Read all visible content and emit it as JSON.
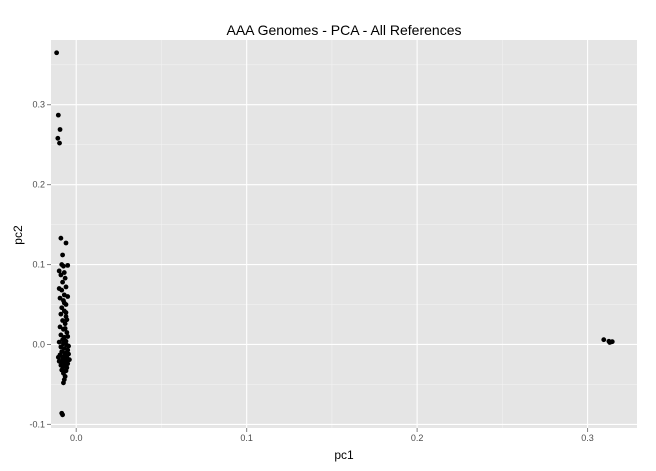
{
  "chart_data": {
    "type": "scatter",
    "title": "AAA Genomes - PCA - All References",
    "xlabel": "pc1",
    "ylabel": "pc2",
    "xlim": [
      -0.0148,
      0.329
    ],
    "ylim": [
      -0.1045,
      0.381
    ],
    "grid": true,
    "legend": "none",
    "colors": {
      "panel": "#e5e5e5",
      "grid_major": "#ffffff",
      "grid_minor": "#f2f2f2",
      "point": "#000000",
      "tick_text": "#4d4d4d"
    },
    "x_ticks": [
      {
        "value": 0.0,
        "label": "0.0"
      },
      {
        "value": 0.1,
        "label": "0.1"
      },
      {
        "value": 0.2,
        "label": "0.2"
      },
      {
        "value": 0.3,
        "label": "0.3"
      }
    ],
    "y_ticks": [
      {
        "value": -0.1,
        "label": "-0.1"
      },
      {
        "value": 0.0,
        "label": "0.0"
      },
      {
        "value": 0.1,
        "label": "0.1"
      },
      {
        "value": 0.2,
        "label": "0.2"
      },
      {
        "value": 0.3,
        "label": "0.3"
      }
    ],
    "points": [
      [
        -0.0115,
        0.365
      ],
      [
        -0.0105,
        0.287
      ],
      [
        -0.0095,
        0.269
      ],
      [
        -0.0108,
        0.258
      ],
      [
        -0.0098,
        0.252
      ],
      [
        -0.009,
        0.133
      ],
      [
        -0.006,
        0.127
      ],
      [
        -0.008,
        0.112
      ],
      [
        -0.0085,
        0.1
      ],
      [
        -0.0075,
        0.098
      ],
      [
        -0.005,
        0.099
      ],
      [
        -0.01,
        0.092
      ],
      [
        -0.007,
        0.09
      ],
      [
        -0.009,
        0.087
      ],
      [
        -0.0065,
        0.083
      ],
      [
        -0.008,
        0.078
      ],
      [
        -0.006,
        0.072
      ],
      [
        -0.0085,
        0.068
      ],
      [
        -0.007,
        0.062
      ],
      [
        -0.005,
        0.06
      ],
      [
        -0.0095,
        0.058
      ],
      [
        -0.0075,
        0.055
      ],
      [
        -0.006,
        0.05
      ],
      [
        -0.0085,
        0.046
      ],
      [
        -0.007,
        0.042
      ],
      [
        -0.009,
        0.038
      ],
      [
        -0.006,
        0.035
      ],
      [
        -0.008,
        0.03
      ],
      [
        -0.0065,
        0.026
      ],
      [
        -0.0095,
        0.022
      ],
      [
        -0.0075,
        0.019
      ],
      [
        -0.0055,
        0.015
      ],
      [
        -0.009,
        0.012
      ],
      [
        -0.007,
        0.009
      ],
      [
        -0.008,
        0.006
      ],
      [
        -0.006,
        0.004
      ],
      [
        -0.01,
        0.003
      ],
      [
        -0.0075,
        0.001
      ],
      [
        -0.0055,
        -0.001
      ],
      [
        -0.009,
        -0.003
      ],
      [
        -0.007,
        -0.005
      ],
      [
        -0.005,
        -0.007
      ],
      [
        -0.0085,
        -0.009
      ],
      [
        -0.0065,
        -0.011
      ],
      [
        -0.0045,
        -0.012
      ],
      [
        -0.0095,
        -0.013
      ],
      [
        -0.0075,
        -0.015
      ],
      [
        -0.0055,
        -0.016
      ],
      [
        -0.008,
        -0.018
      ],
      [
        -0.006,
        -0.02
      ],
      [
        -0.004,
        -0.019
      ],
      [
        -0.01,
        -0.021
      ],
      [
        -0.0085,
        -0.022
      ],
      [
        -0.0065,
        -0.023
      ],
      [
        -0.005,
        -0.024
      ],
      [
        -0.009,
        -0.026
      ],
      [
        -0.007,
        -0.027
      ],
      [
        -0.0055,
        -0.029
      ],
      [
        -0.008,
        -0.031
      ],
      [
        -0.006,
        -0.033
      ],
      [
        -0.0075,
        -0.036
      ],
      [
        -0.0065,
        -0.04
      ],
      [
        -0.007,
        -0.044
      ],
      [
        -0.0075,
        -0.048
      ],
      [
        -0.0085,
        -0.086
      ],
      [
        -0.008,
        -0.088
      ],
      [
        -0.0065,
        0.02
      ],
      [
        -0.0045,
        -0.002
      ],
      [
        -0.0105,
        -0.016
      ],
      [
        -0.006,
        0.04
      ],
      [
        -0.01,
        0.07
      ],
      [
        -0.0055,
        0.031
      ],
      [
        -0.0085,
        -0.032
      ],
      [
        -0.005,
        0.01
      ],
      [
        -0.007,
        0.052
      ],
      [
        0.3095,
        0.006
      ],
      [
        0.3125,
        0.004
      ],
      [
        0.3135,
        0.003
      ],
      [
        0.3145,
        0.0035
      ],
      [
        0.313,
        0.0025
      ]
    ]
  }
}
